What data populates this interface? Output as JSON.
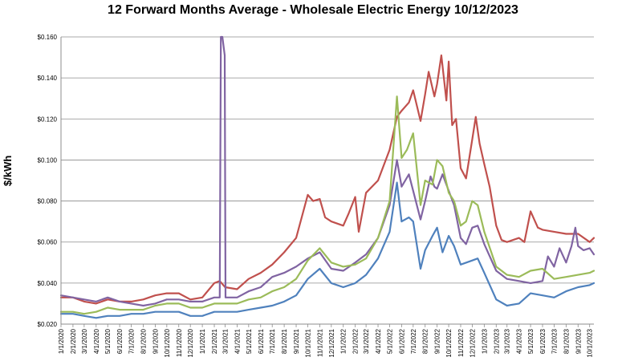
{
  "chart_data": {
    "type": "line",
    "title": "12 Forward Months Average - Wholesale Electric Energy 10/12/2023",
    "ylabel": "$/kWh",
    "xlabel": "",
    "ylim": [
      0.02,
      0.16
    ],
    "yticks": [
      "$0.020",
      "$0.040",
      "$0.060",
      "$0.080",
      "$0.100",
      "$0.120",
      "$0.140",
      "$0.160"
    ],
    "grid": "horizontal",
    "x_start": "2020-01-01",
    "x_end": "2023-10-12",
    "xtick_labels": [
      "1/1/2020",
      "2/1/2020",
      "3/1/2020",
      "4/1/2020",
      "5/1/2020",
      "6/1/2020",
      "7/1/2020",
      "8/1/2020",
      "9/1/2020",
      "10/1/2020",
      "11/1/2020",
      "12/1/2020",
      "1/1/2021",
      "2/1/2021",
      "3/1/2021",
      "4/1/2021",
      "5/1/2021",
      "6/1/2021",
      "7/1/2021",
      "8/1/2021",
      "9/1/2021",
      "10/1/2021",
      "11/1/2021",
      "12/1/2021",
      "1/1/2022",
      "2/1/2022",
      "3/1/2022",
      "4/1/2022",
      "5/1/2022",
      "6/1/2022",
      "7/1/2022",
      "8/1/2022",
      "9/1/2022",
      "10/1/2022",
      "11/1/2022",
      "12/1/2022",
      "1/1/2023",
      "2/1/2023",
      "3/1/2023",
      "4/1/2023",
      "5/1/2023",
      "6/1/2023",
      "7/1/2023",
      "8/1/2023",
      "9/1/2023",
      "10/1/2023"
    ],
    "series": [
      {
        "color": "#c0504d",
        "points": [
          [
            "2020-01-01",
            0.033
          ],
          [
            "2020-02-01",
            0.033
          ],
          [
            "2020-03-01",
            0.031
          ],
          [
            "2020-04-01",
            0.03
          ],
          [
            "2020-05-01",
            0.032
          ],
          [
            "2020-06-01",
            0.031
          ],
          [
            "2020-07-01",
            0.031
          ],
          [
            "2020-08-01",
            0.032
          ],
          [
            "2020-09-01",
            0.034
          ],
          [
            "2020-10-01",
            0.035
          ],
          [
            "2020-11-01",
            0.035
          ],
          [
            "2020-12-01",
            0.032
          ],
          [
            "2021-01-01",
            0.033
          ],
          [
            "2021-02-01",
            0.04
          ],
          [
            "2021-02-15",
            0.041
          ],
          [
            "2021-03-01",
            0.038
          ],
          [
            "2021-04-01",
            0.037
          ],
          [
            "2021-05-01",
            0.042
          ],
          [
            "2021-06-01",
            0.045
          ],
          [
            "2021-07-01",
            0.049
          ],
          [
            "2021-08-01",
            0.055
          ],
          [
            "2021-09-01",
            0.062
          ],
          [
            "2021-10-01",
            0.083
          ],
          [
            "2021-10-15",
            0.08
          ],
          [
            "2021-11-01",
            0.081
          ],
          [
            "2021-11-15",
            0.072
          ],
          [
            "2021-12-01",
            0.07
          ],
          [
            "2022-01-01",
            0.068
          ],
          [
            "2022-01-15",
            0.074
          ],
          [
            "2022-02-01",
            0.082
          ],
          [
            "2022-02-10",
            0.065
          ],
          [
            "2022-03-01",
            0.084
          ],
          [
            "2022-04-01",
            0.09
          ],
          [
            "2022-05-01",
            0.105
          ],
          [
            "2022-05-20",
            0.121
          ],
          [
            "2022-06-01",
            0.124
          ],
          [
            "2022-06-20",
            0.128
          ],
          [
            "2022-07-01",
            0.134
          ],
          [
            "2022-07-20",
            0.119
          ],
          [
            "2022-08-01",
            0.132
          ],
          [
            "2022-08-10",
            0.143
          ],
          [
            "2022-08-25",
            0.131
          ],
          [
            "2022-09-01",
            0.137
          ],
          [
            "2022-09-12",
            0.151
          ],
          [
            "2022-09-25",
            0.129
          ],
          [
            "2022-10-01",
            0.148
          ],
          [
            "2022-10-10",
            0.117
          ],
          [
            "2022-10-20",
            0.12
          ],
          [
            "2022-11-01",
            0.096
          ],
          [
            "2022-11-15",
            0.091
          ],
          [
            "2022-12-01",
            0.11
          ],
          [
            "2022-12-10",
            0.121
          ],
          [
            "2022-12-20",
            0.108
          ],
          [
            "2023-01-01",
            0.098
          ],
          [
            "2023-01-15",
            0.087
          ],
          [
            "2023-02-01",
            0.068
          ],
          [
            "2023-02-15",
            0.061
          ],
          [
            "2023-03-01",
            0.06
          ],
          [
            "2023-04-01",
            0.062
          ],
          [
            "2023-04-15",
            0.06
          ],
          [
            "2023-05-01",
            0.075
          ],
          [
            "2023-05-20",
            0.067
          ],
          [
            "2023-06-01",
            0.066
          ],
          [
            "2023-07-01",
            0.065
          ],
          [
            "2023-08-01",
            0.064
          ],
          [
            "2023-09-01",
            0.064
          ],
          [
            "2023-10-01",
            0.06
          ],
          [
            "2023-10-12",
            0.062
          ]
        ]
      },
      {
        "color": "#8064a2",
        "points": [
          [
            "2020-01-01",
            0.034
          ],
          [
            "2020-02-01",
            0.033
          ],
          [
            "2020-03-01",
            0.032
          ],
          [
            "2020-04-01",
            0.031
          ],
          [
            "2020-05-01",
            0.033
          ],
          [
            "2020-06-01",
            0.031
          ],
          [
            "2020-07-01",
            0.03
          ],
          [
            "2020-08-01",
            0.029
          ],
          [
            "2020-09-01",
            0.03
          ],
          [
            "2020-10-01",
            0.032
          ],
          [
            "2020-11-01",
            0.032
          ],
          [
            "2020-12-01",
            0.031
          ],
          [
            "2021-01-01",
            0.031
          ],
          [
            "2021-02-01",
            0.033
          ],
          [
            "2021-02-15",
            0.033
          ],
          [
            "2021-02-18",
            0.16
          ],
          [
            "2021-02-22",
            0.16
          ],
          [
            "2021-02-28",
            0.151
          ],
          [
            "2021-03-02",
            0.033
          ],
          [
            "2021-04-01",
            0.033
          ],
          [
            "2021-05-01",
            0.036
          ],
          [
            "2021-06-01",
            0.038
          ],
          [
            "2021-07-01",
            0.043
          ],
          [
            "2021-08-01",
            0.045
          ],
          [
            "2021-09-01",
            0.048
          ],
          [
            "2021-10-01",
            0.052
          ],
          [
            "2021-11-01",
            0.055
          ],
          [
            "2021-12-01",
            0.047
          ],
          [
            "2022-01-01",
            0.046
          ],
          [
            "2022-02-01",
            0.05
          ],
          [
            "2022-03-01",
            0.054
          ],
          [
            "2022-04-01",
            0.062
          ],
          [
            "2022-05-01",
            0.078
          ],
          [
            "2022-05-20",
            0.1
          ],
          [
            "2022-06-01",
            0.087
          ],
          [
            "2022-06-20",
            0.093
          ],
          [
            "2022-07-01",
            0.085
          ],
          [
            "2022-07-20",
            0.071
          ],
          [
            "2022-08-01",
            0.08
          ],
          [
            "2022-08-15",
            0.092
          ],
          [
            "2022-08-25",
            0.087
          ],
          [
            "2022-09-01",
            0.086
          ],
          [
            "2022-09-15",
            0.093
          ],
          [
            "2022-10-01",
            0.085
          ],
          [
            "2022-10-15",
            0.078
          ],
          [
            "2022-11-01",
            0.062
          ],
          [
            "2022-11-15",
            0.059
          ],
          [
            "2022-12-01",
            0.067
          ],
          [
            "2022-12-15",
            0.068
          ],
          [
            "2023-01-01",
            0.059
          ],
          [
            "2023-02-01",
            0.046
          ],
          [
            "2023-03-01",
            0.042
          ],
          [
            "2023-04-01",
            0.041
          ],
          [
            "2023-05-01",
            0.04
          ],
          [
            "2023-06-01",
            0.041
          ],
          [
            "2023-06-15",
            0.053
          ],
          [
            "2023-07-01",
            0.048
          ],
          [
            "2023-07-15",
            0.057
          ],
          [
            "2023-08-01",
            0.05
          ],
          [
            "2023-08-15",
            0.058
          ],
          [
            "2023-08-25",
            0.067
          ],
          [
            "2023-09-01",
            0.058
          ],
          [
            "2023-09-15",
            0.056
          ],
          [
            "2023-10-01",
            0.057
          ],
          [
            "2023-10-12",
            0.054
          ]
        ]
      },
      {
        "color": "#9bbb59",
        "points": [
          [
            "2020-01-01",
            0.026
          ],
          [
            "2020-02-01",
            0.026
          ],
          [
            "2020-03-01",
            0.025
          ],
          [
            "2020-04-01",
            0.026
          ],
          [
            "2020-05-01",
            0.028
          ],
          [
            "2020-06-01",
            0.027
          ],
          [
            "2020-07-01",
            0.027
          ],
          [
            "2020-08-01",
            0.027
          ],
          [
            "2020-09-01",
            0.029
          ],
          [
            "2020-10-01",
            0.03
          ],
          [
            "2020-11-01",
            0.03
          ],
          [
            "2020-12-01",
            0.028
          ],
          [
            "2021-01-01",
            0.028
          ],
          [
            "2021-02-01",
            0.03
          ],
          [
            "2021-03-01",
            0.03
          ],
          [
            "2021-04-01",
            0.03
          ],
          [
            "2021-05-01",
            0.032
          ],
          [
            "2021-06-01",
            0.033
          ],
          [
            "2021-07-01",
            0.036
          ],
          [
            "2021-08-01",
            0.038
          ],
          [
            "2021-09-01",
            0.042
          ],
          [
            "2021-10-01",
            0.051
          ],
          [
            "2021-11-01",
            0.057
          ],
          [
            "2021-12-01",
            0.05
          ],
          [
            "2022-01-01",
            0.048
          ],
          [
            "2022-02-01",
            0.049
          ],
          [
            "2022-03-01",
            0.052
          ],
          [
            "2022-04-01",
            0.062
          ],
          [
            "2022-05-01",
            0.08
          ],
          [
            "2022-05-20",
            0.131
          ],
          [
            "2022-06-01",
            0.101
          ],
          [
            "2022-06-15",
            0.105
          ],
          [
            "2022-07-01",
            0.113
          ],
          [
            "2022-07-20",
            0.078
          ],
          [
            "2022-08-01",
            0.09
          ],
          [
            "2022-08-20",
            0.088
          ],
          [
            "2022-09-01",
            0.1
          ],
          [
            "2022-09-15",
            0.097
          ],
          [
            "2022-10-01",
            0.084
          ],
          [
            "2022-10-15",
            0.08
          ],
          [
            "2022-11-01",
            0.068
          ],
          [
            "2022-11-15",
            0.07
          ],
          [
            "2022-12-01",
            0.08
          ],
          [
            "2022-12-15",
            0.078
          ],
          [
            "2023-01-01",
            0.065
          ],
          [
            "2023-02-01",
            0.048
          ],
          [
            "2023-03-01",
            0.044
          ],
          [
            "2023-04-01",
            0.043
          ],
          [
            "2023-05-01",
            0.046
          ],
          [
            "2023-06-01",
            0.047
          ],
          [
            "2023-07-01",
            0.042
          ],
          [
            "2023-08-01",
            0.043
          ],
          [
            "2023-09-01",
            0.044
          ],
          [
            "2023-10-01",
            0.045
          ],
          [
            "2023-10-12",
            0.046
          ]
        ]
      },
      {
        "color": "#4f81bd",
        "points": [
          [
            "2020-01-01",
            0.025
          ],
          [
            "2020-02-01",
            0.025
          ],
          [
            "2020-03-01",
            0.024
          ],
          [
            "2020-04-01",
            0.023
          ],
          [
            "2020-05-01",
            0.024
          ],
          [
            "2020-06-01",
            0.024
          ],
          [
            "2020-07-01",
            0.025
          ],
          [
            "2020-08-01",
            0.025
          ],
          [
            "2020-09-01",
            0.026
          ],
          [
            "2020-10-01",
            0.026
          ],
          [
            "2020-11-01",
            0.026
          ],
          [
            "2020-12-01",
            0.024
          ],
          [
            "2021-01-01",
            0.024
          ],
          [
            "2021-02-01",
            0.026
          ],
          [
            "2021-03-01",
            0.026
          ],
          [
            "2021-04-01",
            0.026
          ],
          [
            "2021-05-01",
            0.027
          ],
          [
            "2021-06-01",
            0.028
          ],
          [
            "2021-07-01",
            0.029
          ],
          [
            "2021-08-01",
            0.031
          ],
          [
            "2021-09-01",
            0.034
          ],
          [
            "2021-10-01",
            0.042
          ],
          [
            "2021-11-01",
            0.047
          ],
          [
            "2021-12-01",
            0.04
          ],
          [
            "2022-01-01",
            0.038
          ],
          [
            "2022-02-01",
            0.04
          ],
          [
            "2022-03-01",
            0.044
          ],
          [
            "2022-04-01",
            0.052
          ],
          [
            "2022-05-01",
            0.065
          ],
          [
            "2022-05-20",
            0.089
          ],
          [
            "2022-06-01",
            0.07
          ],
          [
            "2022-06-20",
            0.072
          ],
          [
            "2022-07-01",
            0.07
          ],
          [
            "2022-07-20",
            0.047
          ],
          [
            "2022-08-01",
            0.056
          ],
          [
            "2022-08-20",
            0.063
          ],
          [
            "2022-09-01",
            0.067
          ],
          [
            "2022-09-15",
            0.055
          ],
          [
            "2022-10-01",
            0.063
          ],
          [
            "2022-10-15",
            0.058
          ],
          [
            "2022-11-01",
            0.049
          ],
          [
            "2022-12-01",
            0.051
          ],
          [
            "2022-12-15",
            0.052
          ],
          [
            "2023-01-01",
            0.045
          ],
          [
            "2023-02-01",
            0.032
          ],
          [
            "2023-03-01",
            0.029
          ],
          [
            "2023-04-01",
            0.03
          ],
          [
            "2023-05-01",
            0.035
          ],
          [
            "2023-06-01",
            0.034
          ],
          [
            "2023-07-01",
            0.033
          ],
          [
            "2023-08-01",
            0.036
          ],
          [
            "2023-09-01",
            0.038
          ],
          [
            "2023-10-01",
            0.039
          ],
          [
            "2023-10-12",
            0.04
          ]
        ]
      }
    ]
  }
}
